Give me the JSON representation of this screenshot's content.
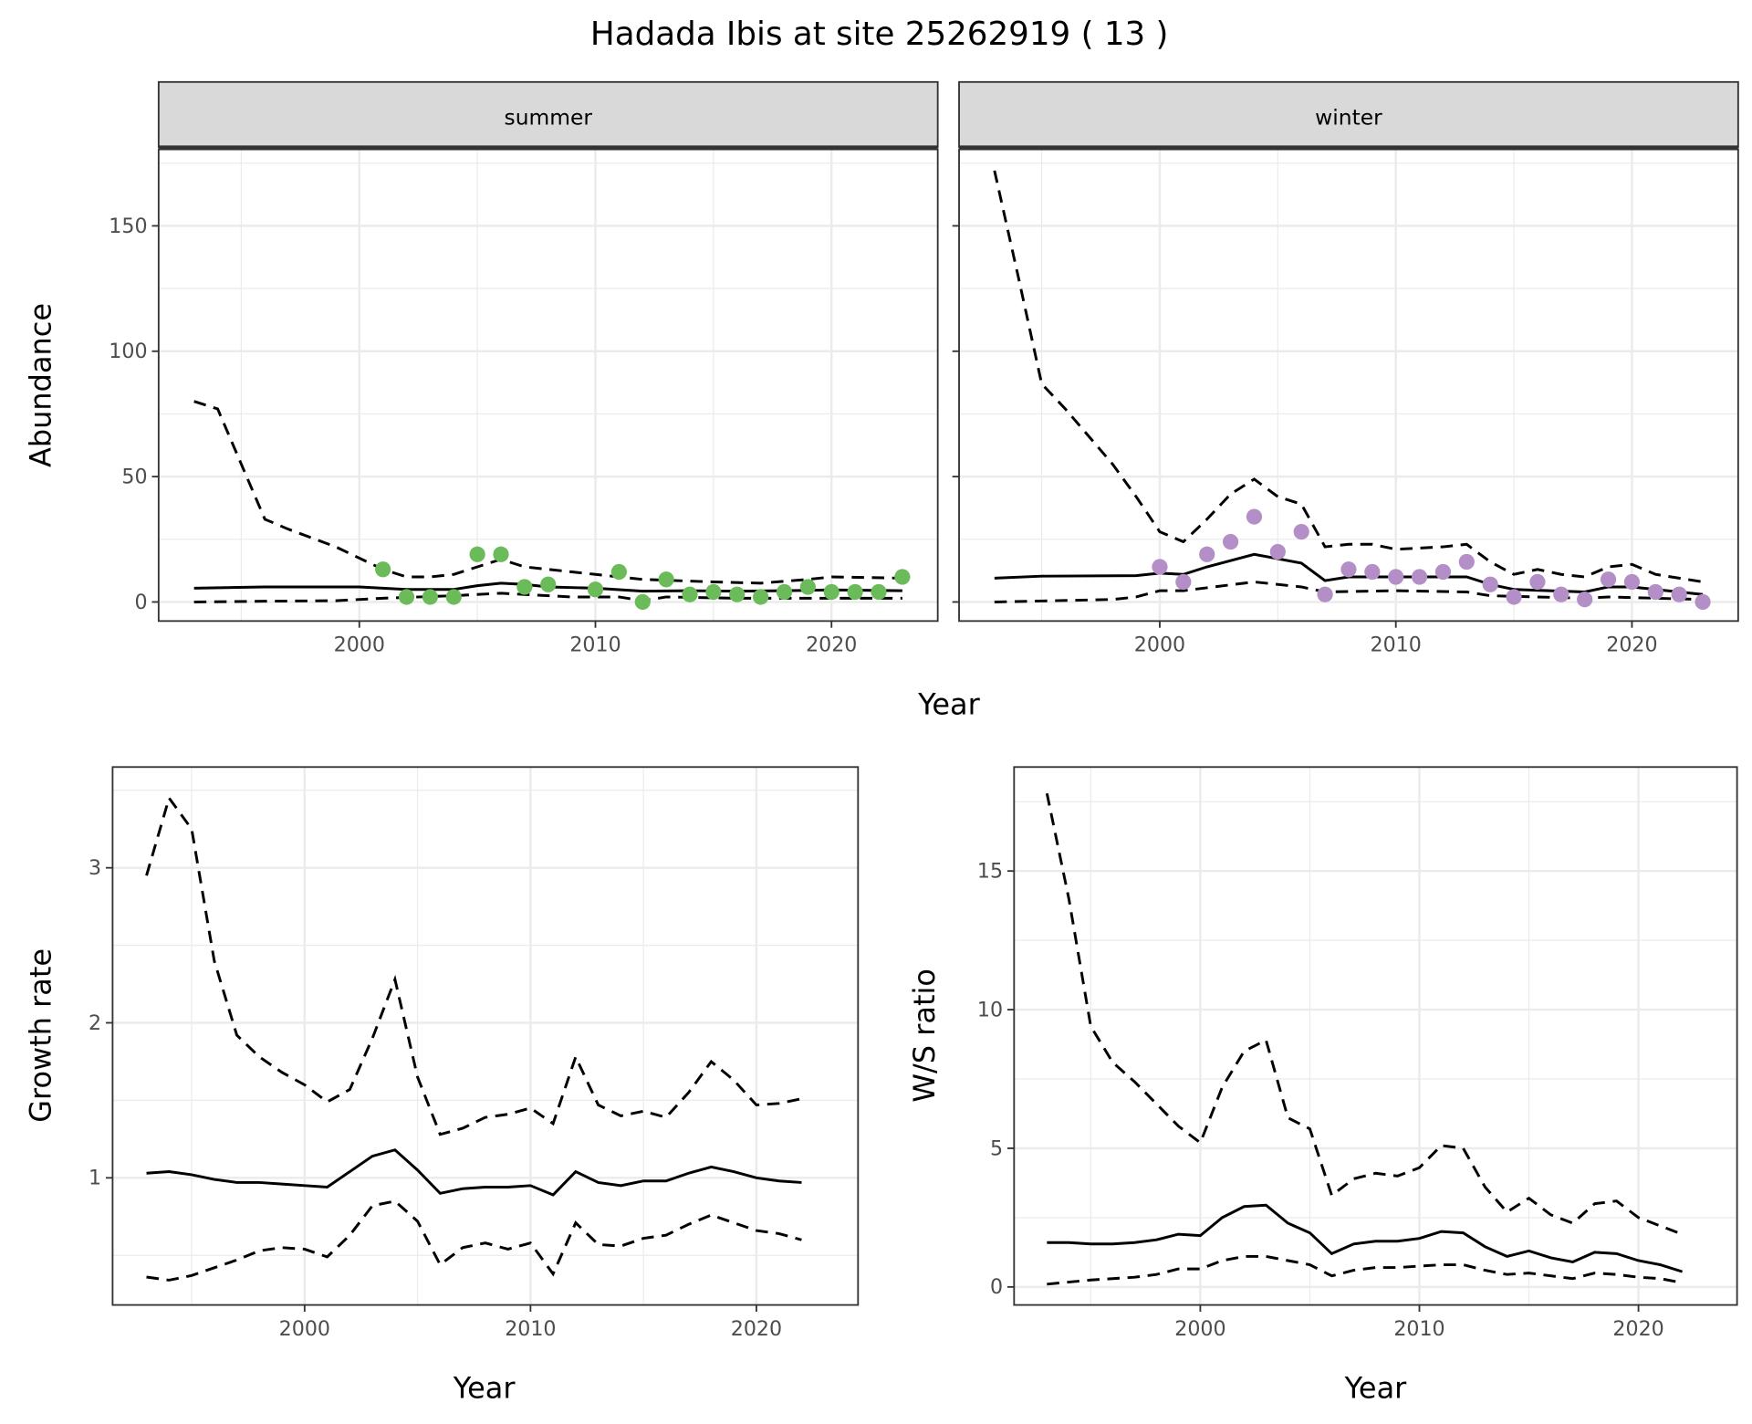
{
  "title": "Hadada Ibis at site 25262919 ( 13 )",
  "colors": {
    "summer_points": "#6cbb5a",
    "winter_points": "#b48ec6",
    "strip_bg": "#d9d9d9",
    "grid": "#ebebeb"
  },
  "chart_data": [
    {
      "type": "line+scatter",
      "facet": "summer",
      "xlabel": "Year",
      "ylabel": "Abundance",
      "xlim": [
        1991.5,
        2024.5
      ],
      "ylim": [
        -7.6,
        180.5
      ],
      "xticks": [
        "2000",
        "2010",
        "2020"
      ],
      "yticks": [
        "0",
        "50",
        "100",
        "150"
      ],
      "points": [
        [
          2001,
          13
        ],
        [
          2002,
          2
        ],
        [
          2003,
          2
        ],
        [
          2004,
          2
        ],
        [
          2005,
          19
        ],
        [
          2006,
          19
        ],
        [
          2007,
          6
        ],
        [
          2008,
          7
        ],
        [
          2010,
          5
        ],
        [
          2011,
          12
        ],
        [
          2012,
          0
        ],
        [
          2013,
          9
        ],
        [
          2014,
          3
        ],
        [
          2015,
          4
        ],
        [
          2016,
          3
        ],
        [
          2017,
          2
        ],
        [
          2018,
          4
        ],
        [
          2019,
          6
        ],
        [
          2020,
          4
        ],
        [
          2021,
          4
        ],
        [
          2022,
          4
        ],
        [
          2023,
          10
        ]
      ],
      "mean": [
        [
          1993,
          5.5
        ],
        [
          1996,
          6
        ],
        [
          2000,
          6
        ],
        [
          2002,
          5
        ],
        [
          2004,
          5
        ],
        [
          2005,
          6.5
        ],
        [
          2006,
          7.5
        ],
        [
          2007,
          7
        ],
        [
          2008,
          6
        ],
        [
          2010,
          5.5
        ],
        [
          2012,
          4.3
        ],
        [
          2014,
          4.5
        ],
        [
          2016,
          4.3
        ],
        [
          2018,
          4.5
        ],
        [
          2020,
          4.8
        ],
        [
          2023,
          4.5
        ]
      ],
      "upper": [
        [
          1993,
          80
        ],
        [
          1994,
          77
        ],
        [
          1996,
          33
        ],
        [
          1997,
          29
        ],
        [
          1999,
          22
        ],
        [
          2001,
          13
        ],
        [
          2002,
          10
        ],
        [
          2003,
          10
        ],
        [
          2004,
          11
        ],
        [
          2005,
          14
        ],
        [
          2006,
          17
        ],
        [
          2007,
          14
        ],
        [
          2010,
          11
        ],
        [
          2012,
          9
        ],
        [
          2015,
          8
        ],
        [
          2017,
          7.5
        ],
        [
          2019,
          9
        ],
        [
          2020,
          10
        ],
        [
          2023,
          9.5
        ]
      ],
      "lower": [
        [
          1993,
          0
        ],
        [
          1996,
          0.3
        ],
        [
          1999,
          0.5
        ],
        [
          2001,
          1.5
        ],
        [
          2004,
          2.5
        ],
        [
          2006,
          3.5
        ],
        [
          2007,
          3
        ],
        [
          2009,
          2
        ],
        [
          2011,
          2
        ],
        [
          2012,
          0.5
        ],
        [
          2013,
          2
        ],
        [
          2016,
          1.5
        ],
        [
          2023,
          1.5
        ]
      ]
    },
    {
      "type": "line+scatter",
      "facet": "winter",
      "xlabel": "Year",
      "ylabel": "Abundance",
      "xlim": [
        1991.5,
        2024.5
      ],
      "ylim": [
        -7.6,
        180.5
      ],
      "xticks": [
        "2000",
        "2010",
        "2020"
      ],
      "yticks": [
        "0",
        "50",
        "100",
        "150"
      ],
      "points": [
        [
          2000,
          14
        ],
        [
          2001,
          8
        ],
        [
          2002,
          19
        ],
        [
          2003,
          24
        ],
        [
          2004,
          34
        ],
        [
          2005,
          20
        ],
        [
          2006,
          28
        ],
        [
          2007,
          3
        ],
        [
          2008,
          13
        ],
        [
          2009,
          12
        ],
        [
          2010,
          10
        ],
        [
          2011,
          10
        ],
        [
          2012,
          12
        ],
        [
          2013,
          16
        ],
        [
          2014,
          7
        ],
        [
          2015,
          2
        ],
        [
          2016,
          8
        ],
        [
          2017,
          3
        ],
        [
          2018,
          1
        ],
        [
          2019,
          9
        ],
        [
          2020,
          8
        ],
        [
          2021,
          4
        ],
        [
          2022,
          3
        ],
        [
          2023,
          0
        ]
      ],
      "mean": [
        [
          1993,
          9.5
        ],
        [
          1995,
          10.3
        ],
        [
          1999,
          10.5
        ],
        [
          2000,
          11.5
        ],
        [
          2001,
          11
        ],
        [
          2002,
          14
        ],
        [
          2004,
          19
        ],
        [
          2006,
          15.5
        ],
        [
          2007,
          8.5
        ],
        [
          2008,
          10
        ],
        [
          2013,
          10
        ],
        [
          2014,
          7
        ],
        [
          2015,
          5
        ],
        [
          2018,
          4
        ],
        [
          2019,
          6
        ],
        [
          2020,
          6
        ],
        [
          2023,
          3
        ]
      ],
      "upper": [
        [
          1993,
          172
        ],
        [
          1994,
          130
        ],
        [
          1995,
          87
        ],
        [
          1996,
          77
        ],
        [
          1998,
          55
        ],
        [
          1999,
          42
        ],
        [
          2000,
          28
        ],
        [
          2001,
          24
        ],
        [
          2002,
          33
        ],
        [
          2003,
          43
        ],
        [
          2004,
          49
        ],
        [
          2005,
          42
        ],
        [
          2006,
          39
        ],
        [
          2007,
          22
        ],
        [
          2008,
          23
        ],
        [
          2009,
          23
        ],
        [
          2010,
          21
        ],
        [
          2012,
          22
        ],
        [
          2013,
          23
        ],
        [
          2014,
          16
        ],
        [
          2015,
          11
        ],
        [
          2016,
          13
        ],
        [
          2017,
          11
        ],
        [
          2018,
          10
        ],
        [
          2019,
          14
        ],
        [
          2020,
          15
        ],
        [
          2021,
          11
        ],
        [
          2023,
          8
        ]
      ],
      "lower": [
        [
          1993,
          0
        ],
        [
          1998,
          1
        ],
        [
          1999,
          2
        ],
        [
          2000,
          4.5
        ],
        [
          2001,
          4.5
        ],
        [
          2004,
          8
        ],
        [
          2006,
          6
        ],
        [
          2007,
          4
        ],
        [
          2010,
          4.5
        ],
        [
          2013,
          4
        ],
        [
          2014,
          2.5
        ],
        [
          2018,
          1.5
        ],
        [
          2019,
          2
        ],
        [
          2023,
          1
        ]
      ]
    },
    {
      "type": "line",
      "xlabel": "Year",
      "ylabel": "Growth rate",
      "xlim": [
        1991.5,
        2024.5
      ],
      "ylim": [
        0.18,
        3.65
      ],
      "xticks": [
        "2000",
        "2010",
        "2020"
      ],
      "yticks": [
        "1",
        "2",
        "3"
      ],
      "mean": [
        [
          1993,
          1.03
        ],
        [
          1994,
          1.04
        ],
        [
          1995,
          1.02
        ],
        [
          1996,
          0.99
        ],
        [
          1997,
          0.97
        ],
        [
          1998,
          0.97
        ],
        [
          1999,
          0.96
        ],
        [
          2000,
          0.95
        ],
        [
          2001,
          0.94
        ],
        [
          2002,
          1.04
        ],
        [
          2003,
          1.14
        ],
        [
          2004,
          1.18
        ],
        [
          2005,
          1.05
        ],
        [
          2006,
          0.9
        ],
        [
          2007,
          0.93
        ],
        [
          2008,
          0.94
        ],
        [
          2009,
          0.94
        ],
        [
          2010,
          0.95
        ],
        [
          2011,
          0.89
        ],
        [
          2012,
          1.04
        ],
        [
          2013,
          0.97
        ],
        [
          2014,
          0.95
        ],
        [
          2015,
          0.98
        ],
        [
          2016,
          0.98
        ],
        [
          2017,
          1.03
        ],
        [
          2018,
          1.07
        ],
        [
          2019,
          1.04
        ],
        [
          2020,
          1.0
        ],
        [
          2021,
          0.98
        ],
        [
          2022,
          0.97
        ]
      ],
      "upper": [
        [
          1993,
          2.95
        ],
        [
          1994,
          3.45
        ],
        [
          1995,
          3.25
        ],
        [
          1996,
          2.4
        ],
        [
          1997,
          1.92
        ],
        [
          1998,
          1.78
        ],
        [
          1999,
          1.68
        ],
        [
          2000,
          1.6
        ],
        [
          2001,
          1.49
        ],
        [
          2002,
          1.57
        ],
        [
          2003,
          1.9
        ],
        [
          2004,
          2.28
        ],
        [
          2005,
          1.65
        ],
        [
          2006,
          1.28
        ],
        [
          2007,
          1.32
        ],
        [
          2008,
          1.39
        ],
        [
          2009,
          1.41
        ],
        [
          2010,
          1.45
        ],
        [
          2011,
          1.35
        ],
        [
          2012,
          1.78
        ],
        [
          2013,
          1.47
        ],
        [
          2014,
          1.4
        ],
        [
          2015,
          1.43
        ],
        [
          2016,
          1.39
        ],
        [
          2017,
          1.55
        ],
        [
          2018,
          1.75
        ],
        [
          2019,
          1.63
        ],
        [
          2020,
          1.47
        ],
        [
          2021,
          1.48
        ],
        [
          2022,
          1.51
        ]
      ],
      "lower": [
        [
          1993,
          0.36
        ],
        [
          1994,
          0.34
        ],
        [
          1995,
          0.37
        ],
        [
          1996,
          0.42
        ],
        [
          1997,
          0.47
        ],
        [
          1998,
          0.53
        ],
        [
          1999,
          0.55
        ],
        [
          2000,
          0.54
        ],
        [
          2001,
          0.49
        ],
        [
          2002,
          0.63
        ],
        [
          2003,
          0.82
        ],
        [
          2004,
          0.85
        ],
        [
          2005,
          0.72
        ],
        [
          2006,
          0.44
        ],
        [
          2007,
          0.55
        ],
        [
          2008,
          0.58
        ],
        [
          2009,
          0.54
        ],
        [
          2010,
          0.58
        ],
        [
          2011,
          0.38
        ],
        [
          2012,
          0.71
        ],
        [
          2013,
          0.57
        ],
        [
          2014,
          0.56
        ],
        [
          2015,
          0.61
        ],
        [
          2016,
          0.63
        ],
        [
          2017,
          0.7
        ],
        [
          2018,
          0.76
        ],
        [
          2019,
          0.71
        ],
        [
          2020,
          0.66
        ],
        [
          2021,
          0.64
        ],
        [
          2022,
          0.6
        ]
      ]
    },
    {
      "type": "line",
      "xlabel": "Year",
      "ylabel": "W/S ratio",
      "xlim": [
        1991.5,
        2024.5
      ],
      "ylim": [
        -0.65,
        18.75
      ],
      "xticks": [
        "2000",
        "2010",
        "2020"
      ],
      "yticks": [
        "0",
        "5",
        "10",
        "15"
      ],
      "mean": [
        [
          1993,
          1.6
        ],
        [
          1994,
          1.6
        ],
        [
          1995,
          1.55
        ],
        [
          1996,
          1.55
        ],
        [
          1997,
          1.6
        ],
        [
          1998,
          1.7
        ],
        [
          1999,
          1.9
        ],
        [
          2000,
          1.85
        ],
        [
          2001,
          2.5
        ],
        [
          2002,
          2.9
        ],
        [
          2003,
          2.95
        ],
        [
          2004,
          2.3
        ],
        [
          2005,
          1.95
        ],
        [
          2006,
          1.2
        ],
        [
          2007,
          1.55
        ],
        [
          2008,
          1.65
        ],
        [
          2009,
          1.65
        ],
        [
          2010,
          1.75
        ],
        [
          2011,
          2.0
        ],
        [
          2012,
          1.95
        ],
        [
          2013,
          1.45
        ],
        [
          2014,
          1.1
        ],
        [
          2015,
          1.3
        ],
        [
          2016,
          1.05
        ],
        [
          2017,
          0.9
        ],
        [
          2018,
          1.25
        ],
        [
          2019,
          1.2
        ],
        [
          2020,
          0.95
        ],
        [
          2021,
          0.8
        ],
        [
          2022,
          0.55
        ]
      ],
      "upper": [
        [
          1993,
          17.8
        ],
        [
          1994,
          14
        ],
        [
          1995,
          9.4
        ],
        [
          1996,
          8.1
        ],
        [
          1997,
          7.4
        ],
        [
          1998,
          6.6
        ],
        [
          1999,
          5.8
        ],
        [
          2000,
          5.2
        ],
        [
          2001,
          7.2
        ],
        [
          2002,
          8.5
        ],
        [
          2003,
          8.9
        ],
        [
          2004,
          6.1
        ],
        [
          2005,
          5.7
        ],
        [
          2006,
          3.3
        ],
        [
          2007,
          3.9
        ],
        [
          2008,
          4.1
        ],
        [
          2009,
          4.0
        ],
        [
          2010,
          4.3
        ],
        [
          2011,
          5.1
        ],
        [
          2012,
          5.0
        ],
        [
          2013,
          3.6
        ],
        [
          2014,
          2.7
        ],
        [
          2015,
          3.2
        ],
        [
          2016,
          2.6
        ],
        [
          2017,
          2.3
        ],
        [
          2018,
          3.0
        ],
        [
          2019,
          3.1
        ],
        [
          2020,
          2.5
        ],
        [
          2021,
          2.2
        ],
        [
          2022,
          1.9
        ]
      ],
      "lower": [
        [
          1993,
          0.1
        ],
        [
          1995,
          0.25
        ],
        [
          1997,
          0.35
        ],
        [
          1998,
          0.45
        ],
        [
          1999,
          0.65
        ],
        [
          2000,
          0.65
        ],
        [
          2001,
          0.95
        ],
        [
          2002,
          1.1
        ],
        [
          2003,
          1.1
        ],
        [
          2004,
          0.95
        ],
        [
          2005,
          0.8
        ],
        [
          2006,
          0.4
        ],
        [
          2007,
          0.6
        ],
        [
          2008,
          0.7
        ],
        [
          2009,
          0.7
        ],
        [
          2010,
          0.75
        ],
        [
          2011,
          0.8
        ],
        [
          2012,
          0.8
        ],
        [
          2013,
          0.6
        ],
        [
          2014,
          0.45
        ],
        [
          2015,
          0.5
        ],
        [
          2016,
          0.4
        ],
        [
          2017,
          0.3
        ],
        [
          2018,
          0.5
        ],
        [
          2019,
          0.45
        ],
        [
          2020,
          0.35
        ],
        [
          2021,
          0.3
        ],
        [
          2022,
          0.15
        ]
      ]
    }
  ]
}
